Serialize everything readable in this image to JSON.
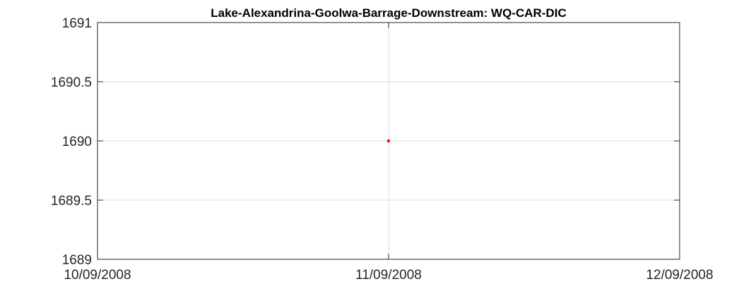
{
  "chart_data": {
    "type": "scatter",
    "title": "Lake-Alexandrina-Goolwa-Barrage-Downstream: WQ-CAR-DIC",
    "xlabel": "",
    "ylabel": "",
    "x_ticks": [
      "10/09/2008",
      "11/09/2008",
      "12/09/2008"
    ],
    "y_ticks": [
      "1689",
      "1689.5",
      "1690",
      "1690.5",
      "1691"
    ],
    "xlim": [
      "10/09/2008",
      "12/09/2008"
    ],
    "ylim": [
      1689,
      1691
    ],
    "grid": true,
    "legend": "none",
    "series": [
      {
        "color": "#ff0000",
        "points": [
          {
            "x": "11/09/2008",
            "y": 1690
          }
        ]
      }
    ]
  }
}
